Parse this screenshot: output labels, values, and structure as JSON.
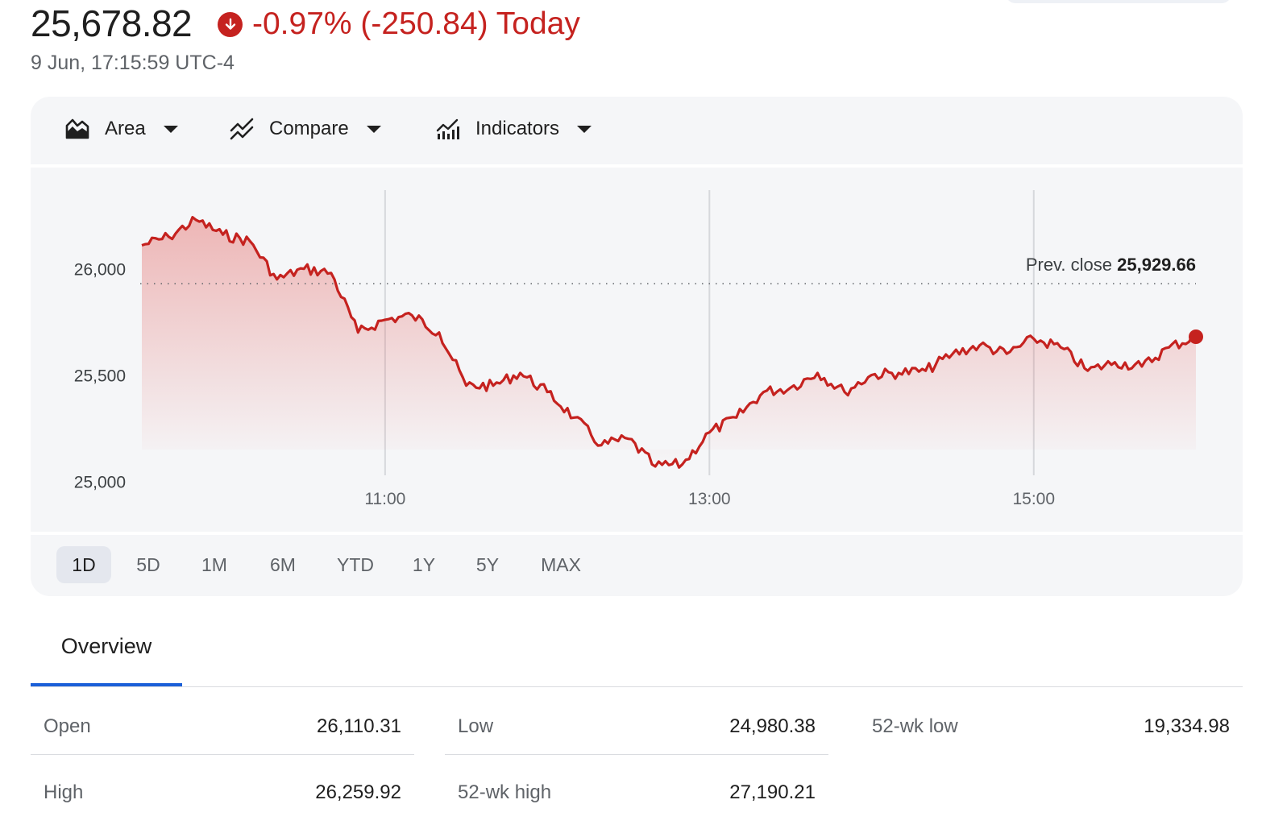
{
  "quote": {
    "price": "25,678.82",
    "change": "-0.97% (-250.84) Today",
    "timestamp": "9 Jun, 17:15:59 UTC-4"
  },
  "toolbar": {
    "area_label": "Area",
    "compare_label": "Compare",
    "indicators_label": "Indicators"
  },
  "ranges": [
    "1D",
    "5D",
    "1M",
    "6M",
    "YTD",
    "1Y",
    "5Y",
    "MAX"
  ],
  "active_range": "1D",
  "tabs": {
    "overview": "Overview"
  },
  "stats": [
    {
      "label": "Open",
      "value": "26,110.31"
    },
    {
      "label": "High",
      "value": "26,259.92"
    },
    {
      "label": "Low",
      "value": "24,980.38"
    },
    {
      "label": "52-wk high",
      "value": "27,190.21"
    },
    {
      "label": "52-wk low",
      "value": "19,334.98"
    }
  ],
  "colors": {
    "negative": "#c5221f",
    "accent": "#1a5fd8"
  },
  "chart_data": {
    "type": "area",
    "yticks": [
      25000,
      25500,
      26000
    ],
    "ytick_labels": [
      "25,000",
      "25,500",
      "26,000"
    ],
    "ylim": [
      24960,
      26400
    ],
    "xticks": [
      "11:00",
      "13:00",
      "15:00"
    ],
    "x_range": [
      "09:30",
      "16:00"
    ],
    "prev_close": {
      "label": "Prev. close",
      "value": 25929.66,
      "value_label": "25,929.66"
    },
    "series": [
      {
        "x": [
          "09:30",
          "09:40",
          "09:50",
          "10:00",
          "10:10",
          "10:20",
          "10:30",
          "10:40",
          "10:50",
          "11:00",
          "11:10",
          "11:20",
          "11:30",
          "11:40",
          "11:50",
          "12:00",
          "12:10",
          "12:20",
          "12:30",
          "12:40",
          "12:50",
          "13:00",
          "13:10",
          "13:20",
          "13:30",
          "13:40",
          "13:50",
          "14:00",
          "14:10",
          "14:20",
          "14:30",
          "14:40",
          "14:50",
          "15:00",
          "15:10",
          "15:20",
          "15:30",
          "15:40",
          "15:50",
          "16:00"
        ],
        "values": [
          26110,
          26150,
          26230,
          26160,
          26130,
          25950,
          26000,
          25980,
          25700,
          25760,
          25780,
          25700,
          25450,
          25450,
          25510,
          25420,
          25300,
          25170,
          25200,
          25070,
          25080,
          25230,
          25300,
          25420,
          25440,
          25510,
          25420,
          25500,
          25510,
          25520,
          25600,
          25640,
          25600,
          25670,
          25630,
          25520,
          25560,
          25540,
          25630,
          25680
        ]
      }
    ]
  }
}
